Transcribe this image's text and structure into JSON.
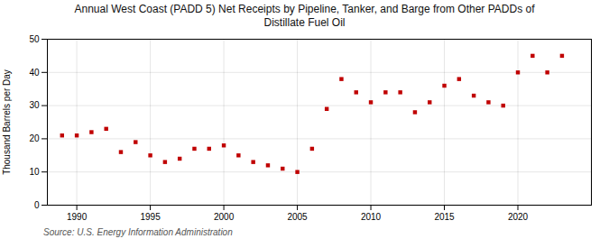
{
  "chart_data": {
    "type": "scatter",
    "title": "Annual West Coast (PADD 5) Net Receipts by Pipeline, Tanker, and Barge from Other PADDs of\nDistillate Fuel Oil",
    "ylabel": "Thousand Barrels per Day",
    "source": "Source: U.S. Energy Information Administration",
    "x": [
      1989,
      1990,
      1991,
      1992,
      1993,
      1994,
      1995,
      1996,
      1997,
      1998,
      1999,
      2000,
      2001,
      2002,
      2003,
      2004,
      2005,
      2006,
      2007,
      2008,
      2009,
      2010,
      2011,
      2012,
      2013,
      2014,
      2015,
      2016,
      2017,
      2018,
      2019,
      2020,
      2021,
      2022,
      2023
    ],
    "values": [
      21,
      21,
      22,
      23,
      16,
      19,
      15,
      13,
      14,
      17,
      17,
      18,
      15,
      13,
      12,
      11,
      10,
      17,
      29,
      38,
      34,
      31,
      34,
      34,
      28,
      31,
      36,
      38,
      33,
      31,
      30,
      40,
      45,
      40,
      45
    ],
    "color": "#c00000",
    "marker": "square",
    "xlim": [
      1988.0,
      2025.0
    ],
    "ylim": [
      0,
      50
    ],
    "xticks": [
      1990,
      1995,
      2000,
      2005,
      2010,
      2015,
      2020
    ],
    "yticks": [
      0,
      10,
      20,
      30,
      40,
      50
    ],
    "grid": true
  }
}
